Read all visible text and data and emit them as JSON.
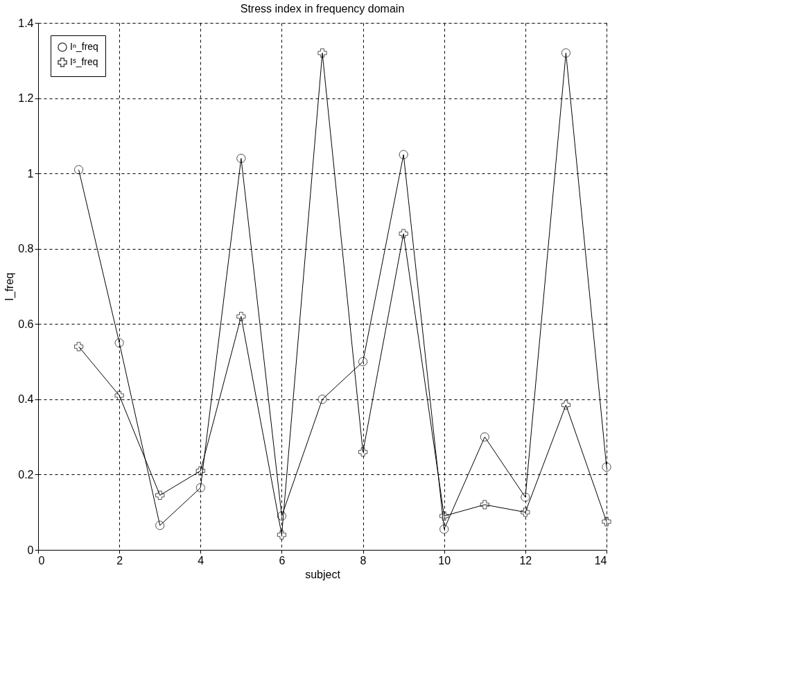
{
  "chart_data": {
    "type": "line",
    "title": "Stress index in frequency domain",
    "xlabel": "subject",
    "ylabel": "I_freq",
    "x": [
      1,
      2,
      3,
      4,
      5,
      6,
      7,
      8,
      9,
      10,
      11,
      12,
      13,
      14
    ],
    "series": [
      {
        "name": "Iⁿ_freq",
        "color": "#000000",
        "marker": "circle",
        "values": [
          1.01,
          0.55,
          0.065,
          0.165,
          1.04,
          0.09,
          0.4,
          0.5,
          1.05,
          0.055,
          0.3,
          0.14,
          1.32,
          0.22
        ]
      },
      {
        "name": "Iˢ_freq",
        "color": "#000000",
        "marker": "cross",
        "values": [
          0.54,
          0.41,
          0.145,
          0.21,
          0.62,
          0.04,
          1.32,
          0.26,
          0.84,
          0.09,
          0.12,
          0.1,
          0.385,
          0.075
        ]
      }
    ],
    "xlim": [
      0,
      14
    ],
    "xticks": [
      0,
      2,
      4,
      6,
      8,
      10,
      12,
      14
    ],
    "ylim": [
      0,
      1.4
    ],
    "yticks": [
      0,
      0.2,
      0.4,
      0.6,
      0.8,
      1,
      1.2,
      1.4
    ],
    "grid": true,
    "legend": "top left",
    "line_style": "solid"
  }
}
